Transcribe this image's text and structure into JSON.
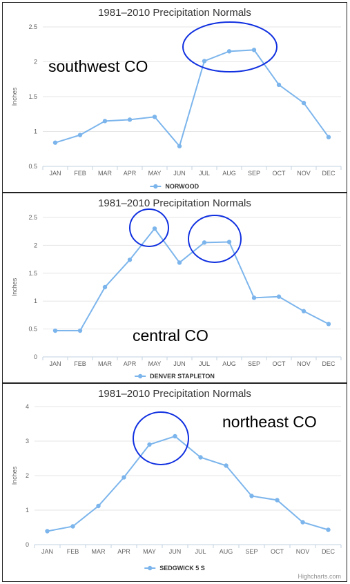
{
  "colors": {
    "series": "#7cb5ec",
    "grid": "#e6e6e6",
    "axis": "#c0d0e0",
    "circle": "#1030e0"
  },
  "credits": "Highcharts.com",
  "chart_data": [
    {
      "type": "line",
      "title": "1981–2010 Precipitation Normals",
      "ylabel": "Inches",
      "categories": [
        "JAN",
        "FEB",
        "MAR",
        "APR",
        "MAY",
        "JUN",
        "JUL",
        "AUG",
        "SEP",
        "OCT",
        "NOV",
        "DEC"
      ],
      "ylim": [
        0.5,
        2.5
      ],
      "yticks": [
        "0.5",
        "1",
        "1.5",
        "2",
        "2.5"
      ],
      "series": [
        {
          "name": "NORWOOD",
          "values": [
            0.84,
            0.95,
            1.15,
            1.17,
            1.21,
            0.79,
            2.01,
            2.15,
            2.17,
            1.67,
            1.41,
            0.92
          ]
        }
      ],
      "annotation": "southwest CO",
      "highlight": "JUL–SEP"
    },
    {
      "type": "line",
      "title": "1981–2010 Precipitation Normals",
      "ylabel": "Inches",
      "categories": [
        "JAN",
        "FEB",
        "MAR",
        "APR",
        "MAY",
        "JUN",
        "JUL",
        "AUG",
        "SEP",
        "OCT",
        "NOV",
        "DEC"
      ],
      "ylim": [
        0,
        2.5
      ],
      "yticks": [
        "0",
        "0.5",
        "1",
        "1.5",
        "2",
        "2.5"
      ],
      "series": [
        {
          "name": "DENVER STAPLETON",
          "values": [
            0.47,
            0.47,
            1.25,
            1.74,
            2.3,
            1.69,
            2.05,
            2.06,
            1.06,
            1.08,
            0.82,
            0.59
          ]
        }
      ],
      "annotation": "central CO",
      "highlight": "MAY; JUL–AUG"
    },
    {
      "type": "line",
      "title": "1981–2010 Precipitation Normals",
      "ylabel": "Inches",
      "categories": [
        "JAN",
        "FEB",
        "MAR",
        "APR",
        "MAY",
        "JUN",
        "JUL",
        "AUG",
        "SEP",
        "OCT",
        "NOV",
        "DEC"
      ],
      "ylim": [
        0,
        4
      ],
      "yticks": [
        "0",
        "1",
        "2",
        "3",
        "4"
      ],
      "series": [
        {
          "name": "SEDGWICK 5 S",
          "values": [
            0.39,
            0.53,
            1.12,
            1.95,
            2.9,
            3.14,
            2.53,
            2.29,
            1.41,
            1.29,
            0.65,
            0.43
          ]
        }
      ],
      "annotation": "northeast CO",
      "highlight": "MAY–JUN"
    }
  ]
}
